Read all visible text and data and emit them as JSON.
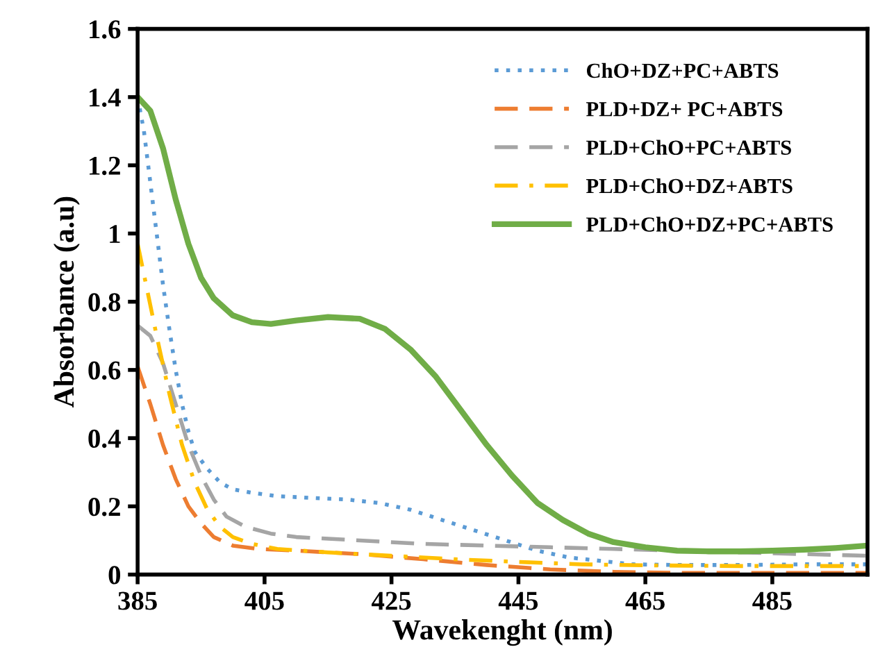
{
  "chart_data": {
    "type": "line",
    "xlabel": "Wavekenght (nm)",
    "ylabel": "Absorbance (a.u)",
    "xlim": [
      385,
      500
    ],
    "xticks": [
      385,
      405,
      425,
      445,
      465,
      485
    ],
    "ylim": [
      0,
      1.6
    ],
    "yticks": [
      0,
      0.2,
      0.4,
      0.6,
      0.8,
      1,
      1.2,
      1.4,
      1.6
    ],
    "grid": false,
    "legend": "top right",
    "marker": "none",
    "series": [
      {
        "name": "ChO+DZ+PC+ABTS",
        "color": "#5b9bd5",
        "line_style": "dotted",
        "x": [
          385,
          386,
          387,
          388,
          389,
          390,
          391,
          392,
          393,
          394,
          396,
          398,
          400,
          403,
          407,
          412,
          418,
          423,
          428,
          433,
          438,
          443,
          448,
          453,
          458,
          463,
          470,
          480,
          490,
          500
        ],
        "values": [
          1.4,
          1.3,
          1.15,
          1.0,
          0.85,
          0.72,
          0.6,
          0.5,
          0.42,
          0.36,
          0.31,
          0.27,
          0.25,
          0.24,
          0.23,
          0.225,
          0.22,
          0.21,
          0.19,
          0.16,
          0.13,
          0.1,
          0.07,
          0.05,
          0.04,
          0.03,
          0.028,
          0.028,
          0.03,
          0.03
        ]
      },
      {
        "name": "PLD+DZ+ PC+ABTS",
        "color": "#ed7d31",
        "line_style": "dashed",
        "x": [
          385,
          387,
          389,
          391,
          393,
          395,
          397,
          400,
          404,
          410,
          420,
          430,
          440,
          450,
          460,
          470,
          485,
          500
        ],
        "values": [
          0.61,
          0.5,
          0.38,
          0.28,
          0.2,
          0.15,
          0.11,
          0.085,
          0.075,
          0.07,
          0.06,
          0.045,
          0.028,
          0.015,
          0.008,
          0.005,
          0.005,
          0.005
        ]
      },
      {
        "name": "PLD+ChO+PC+ABTS",
        "color": "#a5a5a5",
        "line_style": "dashed",
        "x": [
          385,
          387,
          389,
          391,
          393,
          395,
          397,
          399,
          402,
          406,
          410,
          420,
          430,
          440,
          450,
          460,
          470,
          480,
          490,
          500
        ],
        "values": [
          0.73,
          0.7,
          0.62,
          0.5,
          0.38,
          0.29,
          0.22,
          0.17,
          0.14,
          0.12,
          0.11,
          0.1,
          0.09,
          0.085,
          0.08,
          0.075,
          0.07,
          0.065,
          0.06,
          0.055
        ]
      },
      {
        "name": "PLD+ChO+DZ+ABTS",
        "color": "#ffc000",
        "line_style": "dashdot",
        "x": [
          385,
          386,
          388,
          390,
          392,
          394,
          396,
          398,
          400,
          403,
          407,
          415,
          425,
          435,
          445,
          455,
          465,
          480,
          500
        ],
        "values": [
          0.97,
          0.88,
          0.7,
          0.53,
          0.38,
          0.27,
          0.19,
          0.14,
          0.11,
          0.09,
          0.075,
          0.065,
          0.055,
          0.045,
          0.037,
          0.03,
          0.027,
          0.025,
          0.025
        ]
      },
      {
        "name": "PLD+ChO+DZ+PC+ABTS",
        "color": "#70ad47",
        "line_style": "solid",
        "x": [
          385,
          387,
          389,
          391,
          393,
          395,
          397,
          400,
          403,
          406,
          410,
          415,
          420,
          424,
          428,
          432,
          436,
          440,
          444,
          448,
          452,
          456,
          460,
          465,
          470,
          475,
          480,
          485,
          490,
          495,
          500
        ],
        "values": [
          1.4,
          1.36,
          1.25,
          1.1,
          0.97,
          0.87,
          0.81,
          0.76,
          0.74,
          0.735,
          0.745,
          0.755,
          0.75,
          0.72,
          0.66,
          0.58,
          0.48,
          0.38,
          0.29,
          0.21,
          0.16,
          0.12,
          0.095,
          0.08,
          0.07,
          0.068,
          0.068,
          0.07,
          0.073,
          0.078,
          0.085
        ]
      }
    ]
  }
}
